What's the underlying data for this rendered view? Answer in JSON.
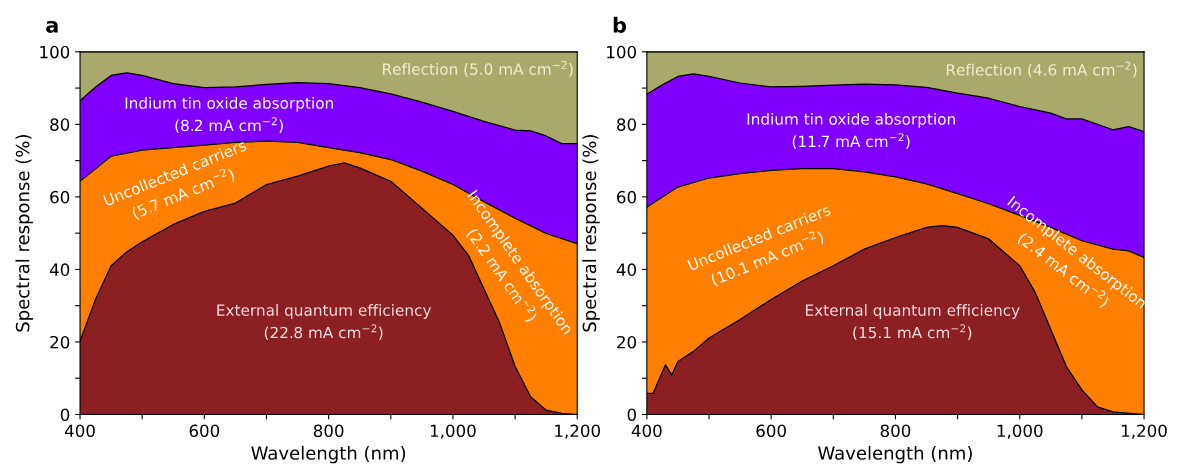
{
  "chart_data": [
    {
      "type": "area",
      "title": "a",
      "xlabel": "Wavelength (nm)",
      "ylabel": "Spectral response (%)",
      "xlim": [
        400,
        1200
      ],
      "ylim": [
        0,
        100
      ],
      "xticks": [
        400,
        {
          "value": 500,
          "label": null
        },
        600,
        {
          "value": 700,
          "label": null
        },
        800,
        {
          "value": 900,
          "label": null
        },
        {
          "value": 1000,
          "label": "1,000"
        },
        {
          "value": 1100,
          "label": null
        },
        {
          "value": 1200,
          "label": "1,200"
        }
      ],
      "yticks": [
        0,
        {
          "value": 10,
          "label": null
        },
        20,
        {
          "value": 30,
          "label": null
        },
        40,
        {
          "value": 50,
          "label": null
        },
        60,
        {
          "value": 70,
          "label": null
        },
        80,
        {
          "value": 90,
          "label": null
        },
        100
      ],
      "grid": false,
      "legend": false,
      "series": [
        {
          "color": "#a9a96b",
          "x": [
            400,
            1200
          ],
          "values": [
            100,
            100
          ]
        },
        {
          "color": "#8000ff",
          "x": [
            400,
            425,
            450,
            475,
            500,
            550,
            600,
            650,
            700,
            750,
            800,
            850,
            900,
            950,
            1000,
            1050,
            1100,
            1125,
            1150,
            1175,
            1200
          ],
          "values": [
            86.5,
            90.3,
            93.5,
            94.2,
            93.5,
            91.2,
            90.1,
            90.3,
            91,
            91.5,
            91.2,
            90.1,
            88.4,
            86.1,
            83.6,
            80.8,
            78.4,
            78.2,
            76.8,
            74.7,
            74.7
          ]
        },
        {
          "color": "#ff8000",
          "x": [
            400,
            450,
            500,
            550,
            600,
            650,
            700,
            750,
            800,
            850,
            900,
            950,
            1000,
            1050,
            1100,
            1150,
            1200
          ],
          "values": [
            64.3,
            71.2,
            72.9,
            73.6,
            74.3,
            75,
            75.4,
            75,
            73.6,
            72.2,
            70.3,
            67.1,
            63.4,
            58.7,
            54.1,
            49.9,
            47.1
          ]
        },
        {
          "color": "#8b1f22",
          "x": [
            400,
            425,
            450,
            475,
            500,
            550,
            600,
            650,
            700,
            750,
            800,
            825,
            850,
            900,
            950,
            1000,
            1025,
            1050,
            1075,
            1100,
            1125,
            1150,
            1175,
            1200
          ],
          "values": [
            20.2,
            31.8,
            41,
            44.8,
            47.6,
            52.4,
            56,
            58.3,
            63.4,
            65.7,
            68.5,
            69.4,
            68,
            64.3,
            56.9,
            49.4,
            43.9,
            34.6,
            25.3,
            13.3,
            4.9,
            1.2,
            0.3,
            0
          ]
        }
      ],
      "annotations": [
        "Reflection (5.0 mA cm$^{−2}$)",
        "Indium tin oxide absorption\n(8.2 mA cm$^{−2}$)",
        "Uncollected carriers\n(5.7 mA cm$^{−2}$)",
        "Incomplete absorption\n(2.2 mA cm$^{−2}$)",
        "External quantum efficiency\n(22.8 mA cm$^{−2}$)"
      ]
    },
    {
      "type": "area",
      "title": "b",
      "xlabel": "Wavelength (nm)",
      "ylabel": "Spectral response (%)",
      "xlim": [
        400,
        1200
      ],
      "ylim": [
        0,
        100
      ],
      "xticks": [
        400,
        {
          "value": 500,
          "label": null
        },
        600,
        {
          "value": 700,
          "label": null
        },
        800,
        {
          "value": 900,
          "label": null
        },
        {
          "value": 1000,
          "label": "1,000"
        },
        {
          "value": 1100,
          "label": null
        },
        {
          "value": 1200,
          "label": "1,200"
        }
      ],
      "yticks": [
        0,
        {
          "value": 10,
          "label": null
        },
        20,
        {
          "value": 30,
          "label": null
        },
        40,
        {
          "value": 50,
          "label": null
        },
        60,
        {
          "value": 70,
          "label": null
        },
        80,
        {
          "value": 90,
          "label": null
        },
        100
      ],
      "grid": false,
      "legend": false,
      "series": [
        {
          "color": "#a9a96b",
          "x": [
            400,
            1200
          ],
          "values": [
            100,
            100
          ]
        },
        {
          "color": "#8000ff",
          "x": [
            400,
            425,
            450,
            475,
            500,
            550,
            600,
            650,
            700,
            750,
            800,
            850,
            900,
            950,
            1000,
            1050,
            1075,
            1100,
            1150,
            1175,
            1200
          ],
          "values": [
            88.3,
            90.9,
            93.2,
            93.9,
            93.2,
            91.4,
            90.3,
            90.5,
            90.8,
            91.1,
            90.9,
            90.2,
            88.6,
            87.2,
            84.9,
            83.1,
            81.5,
            81.5,
            78.5,
            79.4,
            78
          ]
        },
        {
          "color": "#ff8000",
          "x": [
            400,
            450,
            500,
            550,
            600,
            650,
            700,
            750,
            800,
            850,
            900,
            950,
            1000,
            1050,
            1100,
            1150,
            1175,
            1200
          ],
          "values": [
            57.2,
            62.7,
            65.2,
            66.4,
            67.3,
            67.8,
            67.8,
            66.9,
            65.5,
            63.6,
            60.9,
            58.1,
            54.9,
            51.6,
            47.9,
            45.6,
            45.1,
            43.3
          ]
        },
        {
          "color": "#8b1f22",
          "x": [
            400,
            410,
            430,
            440,
            450,
            475,
            500,
            550,
            600,
            650,
            700,
            750,
            800,
            850,
            875,
            900,
            950,
            1000,
            1025,
            1050,
            1075,
            1100,
            1125,
            1150,
            1200
          ],
          "values": [
            5.8,
            5.8,
            13.7,
            10.9,
            14.6,
            17.4,
            21.1,
            26.2,
            31.7,
            36.8,
            41,
            45.6,
            48.8,
            51.6,
            52.1,
            51.6,
            48.4,
            41,
            33.6,
            23.4,
            13.2,
            6.8,
            2.1,
            0.7,
            0
          ]
        }
      ],
      "annotations": [
        "Reflection (4.6 mA cm$^{−2}$)",
        "Indium tin oxide absorption\n(11.7 mA cm$^{−2}$)",
        "Uncollected carriers\n(10.1 mA cm$^{−2}$)",
        "Incomplete absorption\n(2.4 mA cm$^{−2}$)",
        "External quantum efficiency\n(15.1 mA cm$^{−2}$)"
      ]
    }
  ]
}
